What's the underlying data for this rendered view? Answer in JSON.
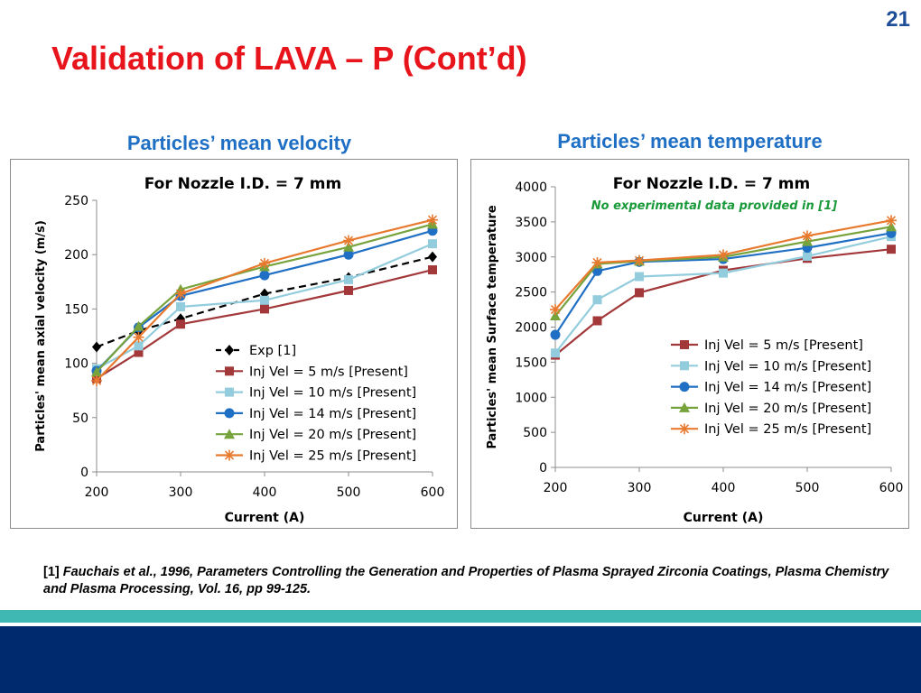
{
  "slide_number": "21",
  "title": "Validation of LAVA – P (Cont’d)",
  "reference": {
    "marker": "[1]",
    "text": "Fauchais et al., 1996, Parameters Controlling the Generation and Properties of Plasma Sprayed Zirconia Coatings, Plasma Chemistry and Plasma Processing, Vol. 16, pp 99-125."
  },
  "colors": {
    "title": "#e8141b",
    "caption": "#1f6fc4",
    "accent_band": "#3fb8b4",
    "footer_band": "#002a6e"
  },
  "chart_data": [
    {
      "type": "line",
      "caption": "Particles’ mean velocity",
      "title": "For Nozzle I.D. = 7 mm",
      "annotation": "",
      "xlabel": "Current (A)",
      "ylabel": "Particles' mean axial velocity (m/s)",
      "xlim": [
        200,
        600
      ],
      "ylim": [
        0,
        250
      ],
      "xticks": [
        200,
        300,
        400,
        500,
        600
      ],
      "yticks": [
        0,
        50,
        100,
        150,
        200,
        250
      ],
      "grid": false,
      "legend_position": "lower-right",
      "series": [
        {
          "name": "Exp [1]",
          "color": "#000000",
          "marker": "diamond",
          "dashed": true,
          "x": [
            200,
            250,
            300,
            400,
            500,
            600
          ],
          "y": [
            115,
            130,
            141,
            164,
            179,
            198
          ]
        },
        {
          "name": "Inj Vel = 5 m/s [Present]",
          "color": "#a3383a",
          "marker": "square",
          "dashed": false,
          "x": [
            200,
            250,
            300,
            400,
            500,
            600
          ],
          "y": [
            86,
            110,
            136,
            150,
            167,
            186
          ]
        },
        {
          "name": "Inj Vel = 10 m/s [Present]",
          "color": "#93cddd",
          "marker": "square",
          "dashed": false,
          "x": [
            200,
            250,
            300,
            400,
            500,
            600
          ],
          "y": [
            95,
            116,
            152,
            158,
            177,
            210
          ]
        },
        {
          "name": "Inj Vel = 14 m/s [Present]",
          "color": "#1f6fc4",
          "marker": "circle",
          "dashed": false,
          "x": [
            200,
            250,
            300,
            400,
            500,
            600
          ],
          "y": [
            93,
            133,
            162,
            181,
            200,
            222
          ]
        },
        {
          "name": "Inj Vel = 20 m/s [Present]",
          "color": "#77a33c",
          "marker": "triangle",
          "dashed": false,
          "x": [
            200,
            250,
            300,
            400,
            500,
            600
          ],
          "y": [
            92,
            134,
            168,
            189,
            207,
            228
          ]
        },
        {
          "name": "Inj Vel = 25 m/s [Present]",
          "color": "#e87a2f",
          "marker": "star",
          "dashed": false,
          "x": [
            200,
            250,
            300,
            400,
            500,
            600
          ],
          "y": [
            84,
            124,
            164,
            192,
            213,
            232
          ]
        }
      ]
    },
    {
      "type": "line",
      "caption": "Particles’ mean temperature",
      "title": "For Nozzle I.D. = 7 mm",
      "annotation": "No experimental data provided in [1]",
      "xlabel": "Current (A)",
      "ylabel": "Particles' mean Surface temperature",
      "xlim": [
        200,
        600
      ],
      "ylim": [
        0,
        4000
      ],
      "xticks": [
        200,
        300,
        400,
        500,
        600
      ],
      "yticks": [
        0,
        500,
        1000,
        1500,
        2000,
        2500,
        3000,
        3500,
        4000
      ],
      "grid": false,
      "legend_position": "lower-right",
      "series": [
        {
          "name": "Inj Vel = 5 m/s [Present]",
          "color": "#a3383a",
          "marker": "square",
          "dashed": false,
          "x": [
            200,
            250,
            300,
            400,
            500,
            600
          ],
          "y": [
            1600,
            2090,
            2490,
            2810,
            2980,
            3110
          ]
        },
        {
          "name": "Inj Vel = 10 m/s [Present]",
          "color": "#93cddd",
          "marker": "square",
          "dashed": false,
          "x": [
            200,
            250,
            300,
            400,
            500,
            600
          ],
          "y": [
            1630,
            2390,
            2720,
            2770,
            3010,
            3290
          ]
        },
        {
          "name": "Inj Vel = 14 m/s [Present]",
          "color": "#1f6fc4",
          "marker": "circle",
          "dashed": false,
          "x": [
            200,
            250,
            300,
            400,
            500,
            600
          ],
          "y": [
            1890,
            2800,
            2930,
            2970,
            3130,
            3340
          ]
        },
        {
          "name": "Inj Vel = 20 m/s [Present]",
          "color": "#77a33c",
          "marker": "triangle",
          "dashed": false,
          "x": [
            200,
            250,
            300,
            400,
            500,
            600
          ],
          "y": [
            2160,
            2900,
            2940,
            3000,
            3220,
            3430
          ]
        },
        {
          "name": "Inj Vel = 25 m/s [Present]",
          "color": "#e87a2f",
          "marker": "star",
          "dashed": false,
          "x": [
            200,
            250,
            300,
            400,
            500,
            600
          ],
          "y": [
            2250,
            2920,
            2950,
            3030,
            3300,
            3520
          ]
        }
      ]
    }
  ]
}
